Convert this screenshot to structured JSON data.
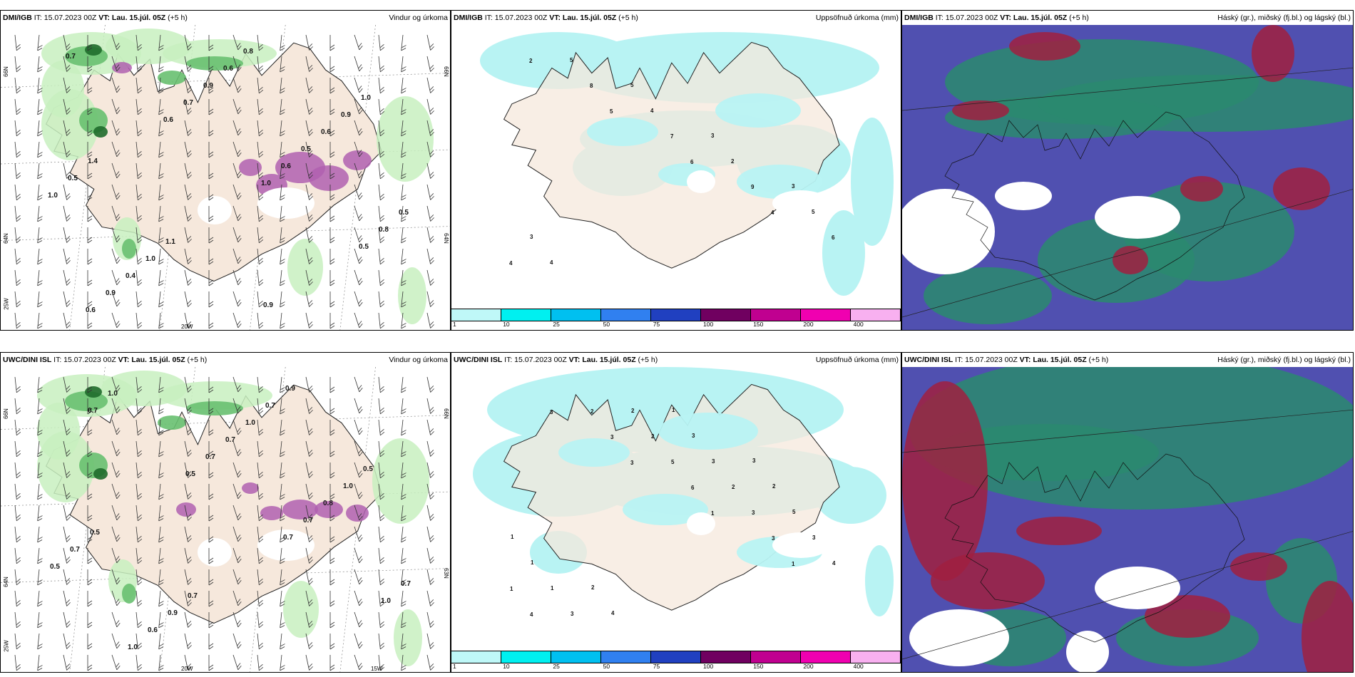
{
  "panels": {
    "p1": {
      "model": "DMI/IGB",
      "it": "IT: 15.07.2023 00Z",
      "vt": "VT: Lau. 15.júl. 05Z",
      "lead": "(+5 h)",
      "title": "Vindur og úrkoma",
      "labels": [
        "0.7",
        "0.6",
        "1.0",
        "0.5",
        "0.6",
        "0.7",
        "0.6",
        "0.8",
        "0.9",
        "0.9",
        "0.5",
        "0.5",
        "0.4",
        "0.6",
        "0.6",
        "1.0",
        "1.0",
        "0.8",
        "0.9",
        "0.5",
        "1.1",
        "0.9",
        "1.0",
        "1.4"
      ]
    },
    "p2": {
      "model": "DMI/IGB",
      "it": "IT: 15.07.2023 00Z",
      "vt": "VT: Lau. 15.júl. 05Z",
      "lead": "(+5 h)",
      "title": "Uppsöfnuð úrkoma (mm)",
      "labels": [
        "2",
        "5",
        "6",
        "4",
        "4",
        "8",
        "7",
        "9",
        "6",
        "5",
        "4",
        "2",
        "5",
        "4",
        "5",
        "3",
        "3",
        "3"
      ]
    },
    "p3": {
      "model": "DMI/IGB",
      "it": "IT: 15.07.2023 00Z",
      "vt": "VT: Lau. 15.júl. 05Z",
      "lead": "(+5 h)",
      "title": "Háský (gr.), miðský (fj.bl.) og lágský (bl.)"
    },
    "p4": {
      "model": "UWC/DINI ISL",
      "it": "IT: 15.07.2023 00Z",
      "vt": "VT: Lau. 15.júl. 05Z",
      "lead": "(+5 h)",
      "title": "Vindur og úrkoma",
      "labels": [
        "0.7",
        "0.5",
        "0.7",
        "1.0",
        "1.0",
        "0.7",
        "0.7",
        "0.7",
        "1.0",
        "0.7",
        "0.8",
        "0.5",
        "0.6",
        "1.0",
        "1.0",
        "0.7",
        "0.9",
        "0.7",
        "0.5",
        "0.5",
        "0.7",
        "0.9"
      ]
    },
    "p5": {
      "model": "UWC/DINI ISL",
      "it": "IT: 15.07.2023 00Z",
      "vt": "VT: Lau. 15.júl. 05Z",
      "lead": "(+5 h)",
      "title": "Uppsöfnuð úrkoma (mm)",
      "labels": [
        "3",
        "3",
        "1",
        "1",
        "4",
        "3",
        "6",
        "3",
        "1",
        "2",
        "5",
        "3",
        "4",
        "3",
        "2",
        "2",
        "3",
        "1",
        "2",
        "3",
        "5",
        "1",
        "4",
        "3",
        "2",
        "1",
        "2",
        "1",
        "3"
      ]
    },
    "p6": {
      "model": "UWC/DINI ISL",
      "it": "IT: 15.07.2023 00Z",
      "vt": "VT: Lau. 15.júl. 05Z",
      "lead": "(+5 h)",
      "title": "Háský (gr.), miðský (fj.bl.) og lágský (bl.)"
    }
  },
  "axes": {
    "lat66": "66N",
    "lat64": "64N",
    "lat63": "63N",
    "lon20": "20W",
    "lon15": "15W",
    "lat25": "25W"
  },
  "colorbar": {
    "labels": [
      "1",
      "10",
      "25",
      "50",
      "75",
      "100",
      "150",
      "200",
      "400"
    ],
    "colors": [
      "#bff8f8",
      "#00f0f0",
      "#00c0f0",
      "#3080f0",
      "#2040c0",
      "#700060",
      "#c00090",
      "#f000b0",
      "#f8b0f0"
    ]
  },
  "colors": {
    "land": "#f6e8dc",
    "ocean": "#ffffff",
    "precip": "#b8f3f3",
    "green1": "#c8f0c0",
    "green2": "#68c070",
    "green3": "#1f6b2b",
    "purple": "#b060b0",
    "high": "#5050b0",
    "mid": "#2a8a6f",
    "low": "#a02040"
  }
}
